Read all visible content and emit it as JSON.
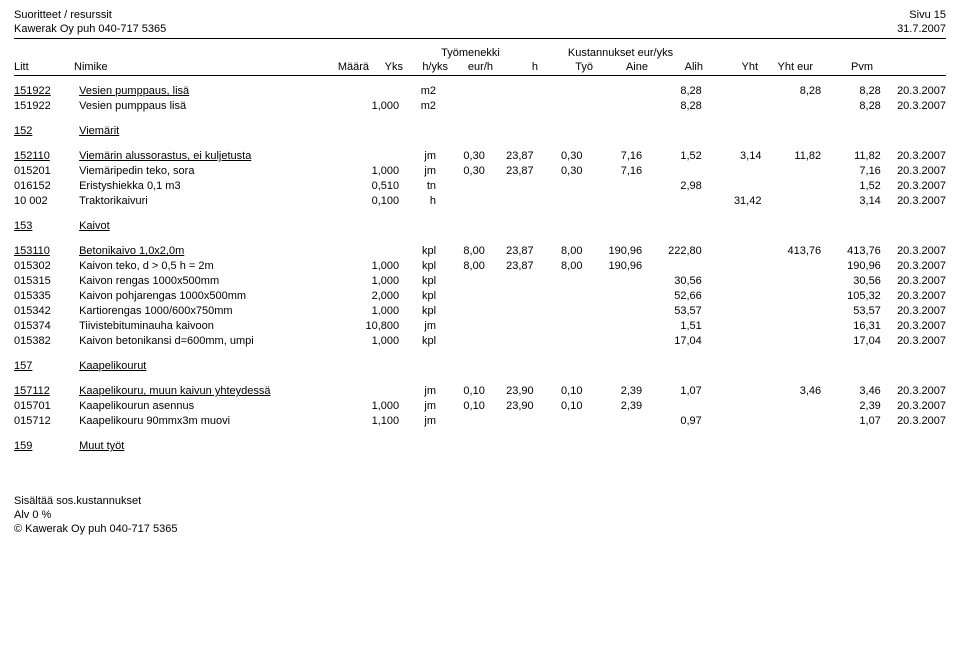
{
  "header": {
    "title1": "Suoritteet / resurssit",
    "title2": "Kawerak Oy puh 040-717 5365",
    "page": "Sivu 15",
    "date": "31.7.2007",
    "group_tyomenekki": "Työmenekki",
    "group_kustannukset": "Kustannukset eur/yks"
  },
  "cols": {
    "litt": "Litt",
    "nimike": "Nimike",
    "maara": "Määrä",
    "yks": "Yks",
    "hyks": "h/yks",
    "eurh": "eur/h",
    "h": "h",
    "tyo": "Työ",
    "aine": "Aine",
    "alih": "Alih",
    "yht": "Yht",
    "yhteur": "Yht eur",
    "pvm": "Pvm"
  },
  "rows": [
    {
      "litt": "151922",
      "nimike": "Vesien pumppaus, lisä",
      "u": true,
      "maara": "",
      "yks": "m2",
      "hyks": "",
      "eurh": "",
      "h": "",
      "tyo": "",
      "aine": "8,28",
      "alih": "",
      "yht": "8,28",
      "yhteur": "8,28",
      "pvm": "20.3.2007"
    },
    {
      "litt": "151922",
      "nimike": "Vesien pumppaus lisä",
      "maara": "1,000",
      "yks": "m2",
      "hyks": "",
      "eurh": "",
      "h": "",
      "tyo": "",
      "aine": "8,28",
      "alih": "",
      "yht": "",
      "yhteur": "8,28",
      "pvm": "20.3.2007"
    },
    {
      "spacer": true
    },
    {
      "litt": "152",
      "nimike": "Viemärit",
      "u": true
    },
    {
      "spacer": true
    },
    {
      "litt": "152110",
      "nimike": "Viemärin alussorastus, ei kuljetusta",
      "u": true,
      "maara": "",
      "yks": "jm",
      "hyks": "0,30",
      "eurh": "23,87",
      "h": "0,30",
      "tyo": "7,16",
      "aine": "1,52",
      "alih": "3,14",
      "yht": "11,82",
      "yhteur": "11,82",
      "pvm": "20.3.2007"
    },
    {
      "litt": "015201",
      "nimike": "Viemäripedin teko, sora",
      "maara": "1,000",
      "yks": "jm",
      "hyks": "0,30",
      "eurh": "23,87",
      "h": "0,30",
      "tyo": "7,16",
      "aine": "",
      "alih": "",
      "yht": "",
      "yhteur": "7,16",
      "pvm": "20.3.2007"
    },
    {
      "litt": "016152",
      "nimike": "Eristyshiekka 0,1 m3",
      "maara": "0,510",
      "yks": "tn",
      "hyks": "",
      "eurh": "",
      "h": "",
      "tyo": "",
      "aine": "2,98",
      "alih": "",
      "yht": "",
      "yhteur": "1,52",
      "pvm": "20.3.2007"
    },
    {
      "litt": "10 002",
      "nimike": "Traktorikaivuri",
      "maara": "0,100",
      "yks": "h",
      "hyks": "",
      "eurh": "",
      "h": "",
      "tyo": "",
      "aine": "",
      "alih": "31,42",
      "yht": "",
      "yhteur": "3,14",
      "pvm": "20.3.2007"
    },
    {
      "spacer": true
    },
    {
      "litt": "153",
      "nimike": "Kaivot",
      "u": true
    },
    {
      "spacer": true
    },
    {
      "litt": "153110",
      "nimike": "Betonikaivo 1,0x2,0m",
      "u": true,
      "maara": "",
      "yks": "kpl",
      "hyks": "8,00",
      "eurh": "23,87",
      "h": "8,00",
      "tyo": "190,96",
      "aine": "222,80",
      "alih": "",
      "yht": "413,76",
      "yhteur": "413,76",
      "pvm": "20.3.2007"
    },
    {
      "litt": "015302",
      "nimike": "Kaivon teko, d > 0,5 h = 2m",
      "maara": "1,000",
      "yks": "kpl",
      "hyks": "8,00",
      "eurh": "23,87",
      "h": "8,00",
      "tyo": "190,96",
      "aine": "",
      "alih": "",
      "yht": "",
      "yhteur": "190,96",
      "pvm": "20.3.2007"
    },
    {
      "litt": "015315",
      "nimike": "Kaivon rengas 1000x500mm",
      "maara": "1,000",
      "yks": "kpl",
      "hyks": "",
      "eurh": "",
      "h": "",
      "tyo": "",
      "aine": "30,56",
      "alih": "",
      "yht": "",
      "yhteur": "30,56",
      "pvm": "20.3.2007"
    },
    {
      "litt": "015335",
      "nimike": "Kaivon pohjarengas 1000x500mm",
      "maara": "2,000",
      "yks": "kpl",
      "hyks": "",
      "eurh": "",
      "h": "",
      "tyo": "",
      "aine": "52,66",
      "alih": "",
      "yht": "",
      "yhteur": "105,32",
      "pvm": "20.3.2007"
    },
    {
      "litt": "015342",
      "nimike": "Kartiorengas 1000/600x750mm",
      "maara": "1,000",
      "yks": "kpl",
      "hyks": "",
      "eurh": "",
      "h": "",
      "tyo": "",
      "aine": "53,57",
      "alih": "",
      "yht": "",
      "yhteur": "53,57",
      "pvm": "20.3.2007"
    },
    {
      "litt": "015374",
      "nimike": "Tiivistebituminauha kaivoon",
      "maara": "10,800",
      "yks": "jm",
      "hyks": "",
      "eurh": "",
      "h": "",
      "tyo": "",
      "aine": "1,51",
      "alih": "",
      "yht": "",
      "yhteur": "16,31",
      "pvm": "20.3.2007"
    },
    {
      "litt": "015382",
      "nimike": "Kaivon betonikansi d=600mm, umpi",
      "maara": "1,000",
      "yks": "kpl",
      "hyks": "",
      "eurh": "",
      "h": "",
      "tyo": "",
      "aine": "17,04",
      "alih": "",
      "yht": "",
      "yhteur": "17,04",
      "pvm": "20.3.2007"
    },
    {
      "spacer": true
    },
    {
      "litt": "157",
      "nimike": "Kaapelikourut",
      "u": true
    },
    {
      "spacer": true
    },
    {
      "litt": "157112",
      "nimike": "Kaapelikouru, muun kaivun yhteydessä",
      "u": true,
      "maara": "",
      "yks": "jm",
      "hyks": "0,10",
      "eurh": "23,90",
      "h": "0,10",
      "tyo": "2,39",
      "aine": "1,07",
      "alih": "",
      "yht": "3,46",
      "yhteur": "3,46",
      "pvm": "20.3.2007"
    },
    {
      "litt": "015701",
      "nimike": "Kaapelikourun asennus",
      "maara": "1,000",
      "yks": "jm",
      "hyks": "0,10",
      "eurh": "23,90",
      "h": "0,10",
      "tyo": "2,39",
      "aine": "",
      "alih": "",
      "yht": "",
      "yhteur": "2,39",
      "pvm": "20.3.2007"
    },
    {
      "litt": "015712",
      "nimike": "Kaapelikouru 90mmx3m muovi",
      "maara": "1,100",
      "yks": "jm",
      "hyks": "",
      "eurh": "",
      "h": "",
      "tyo": "",
      "aine": "0,97",
      "alih": "",
      "yht": "",
      "yhteur": "1,07",
      "pvm": "20.3.2007"
    },
    {
      "spacer": true
    },
    {
      "litt": "159",
      "nimike": "Muut työt",
      "u": true
    }
  ],
  "footer": {
    "l1": "Sisältää sos.kustannukset",
    "l2": "Alv 0 %",
    "l3": "©  Kawerak Oy puh 040-717 5365"
  }
}
